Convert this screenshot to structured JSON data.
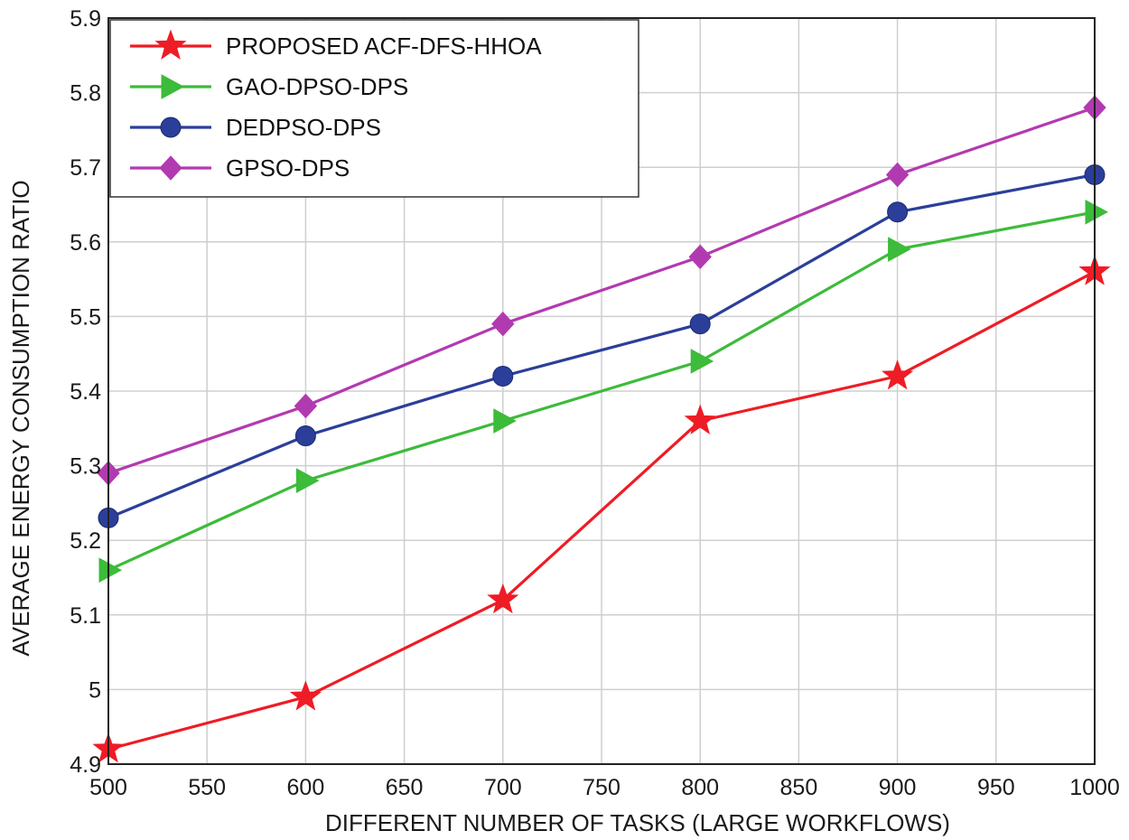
{
  "chart_data": {
    "type": "line",
    "title": "",
    "xlabel": "DIFFERENT NUMBER OF TASKS (LARGE WORKFLOWS)",
    "ylabel": "AVERAGE ENERGY CONSUMPTION RATIO",
    "xlim": [
      500,
      1000
    ],
    "ylim": [
      4.9,
      5.9
    ],
    "x_ticks": [
      "500",
      "550",
      "600",
      "650",
      "700",
      "750",
      "800",
      "850",
      "900",
      "950",
      "1000"
    ],
    "y_ticks": [
      "4.9",
      "5",
      "5.1",
      "5.2",
      "5.3",
      "5.4",
      "5.5",
      "5.6",
      "5.7",
      "5.8",
      "5.9"
    ],
    "grid": true,
    "legend_position": "top-left",
    "x": [
      500,
      600,
      700,
      800,
      900,
      1000
    ],
    "series": [
      {
        "name": "PROPOSED ACF-DFS-HHOA",
        "color": "#ee1c25",
        "marker": "star",
        "values": [
          4.92,
          4.99,
          5.12,
          5.36,
          5.42,
          5.56
        ]
      },
      {
        "name": "GAO-DPSO-DPS",
        "color": "#3dbb3a",
        "marker": "triangle-right",
        "values": [
          5.16,
          5.28,
          5.36,
          5.44,
          5.59,
          5.64
        ]
      },
      {
        "name": "DEDPSO-DPS",
        "color": "#2b3f9a",
        "marker": "circle",
        "values": [
          5.23,
          5.34,
          5.42,
          5.49,
          5.64,
          5.69
        ]
      },
      {
        "name": "GPSO-DPS",
        "color": "#b23ab0",
        "marker": "diamond",
        "values": [
          5.29,
          5.38,
          5.49,
          5.58,
          5.69,
          5.78
        ]
      }
    ]
  }
}
